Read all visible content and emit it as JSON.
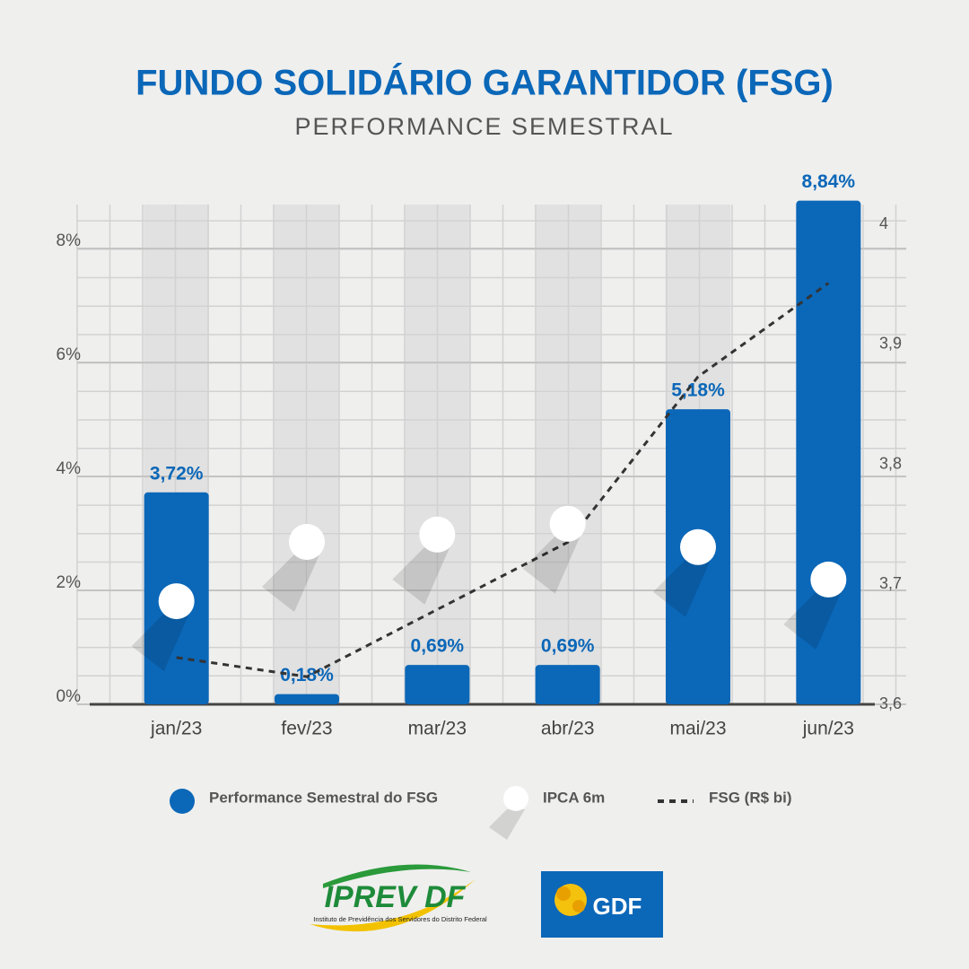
{
  "chart_data": {
    "type": "bar",
    "title": "FUNDO SOLIDÁRIO GARANTIDOR (FSG)",
    "subtitle": "PERFORMANCE SEMESTRAL",
    "categories": [
      "jan/23",
      "fev/23",
      "mar/23",
      "abr/23",
      "mai/23",
      "jun/23"
    ],
    "series": [
      {
        "name": "Performance Semestral do FSG",
        "type": "bar",
        "color": "#0b67b8",
        "values": [
          3.72,
          0.18,
          0.69,
          0.69,
          5.18,
          8.84
        ],
        "value_labels": [
          "3,72%",
          "0,18%",
          "0,69%",
          "0,69%",
          "5,18%",
          "8,84%"
        ]
      },
      {
        "name": "IPCA 6m",
        "type": "scatter",
        "color": "#ffffff",
        "values": [
          1.81,
          2.85,
          2.98,
          3.17,
          2.76,
          2.19
        ]
      },
      {
        "name": "FSG (R$ bi)",
        "type": "line",
        "color": "#333333",
        "axis": "y2",
        "values": [
          3.639,
          3.623,
          3.679,
          3.735,
          3.873,
          3.951
        ]
      }
    ],
    "ylim": [
      0,
      8.8
    ],
    "yticks": [
      {
        "value": 0,
        "label": "0%"
      },
      {
        "value": 2,
        "label": "2%"
      },
      {
        "value": 4,
        "label": "4%"
      },
      {
        "value": 6,
        "label": "6%"
      },
      {
        "value": 8,
        "label": "8%"
      }
    ],
    "y2lim": [
      3.6,
      4.0
    ],
    "y2ticks": [
      {
        "value": 3.6,
        "label": "3,6"
      },
      {
        "value": 3.7,
        "label": "3,7"
      },
      {
        "value": 3.8,
        "label": "3,8"
      },
      {
        "value": 3.9,
        "label": "3,9"
      },
      4
    ],
    "grid": true
  },
  "logos": {
    "iprev": "IPREV DF",
    "iprev_subtitle": "Instituto de Previdência dos Servidores do Distrito Federal",
    "gdf": "GDF"
  }
}
